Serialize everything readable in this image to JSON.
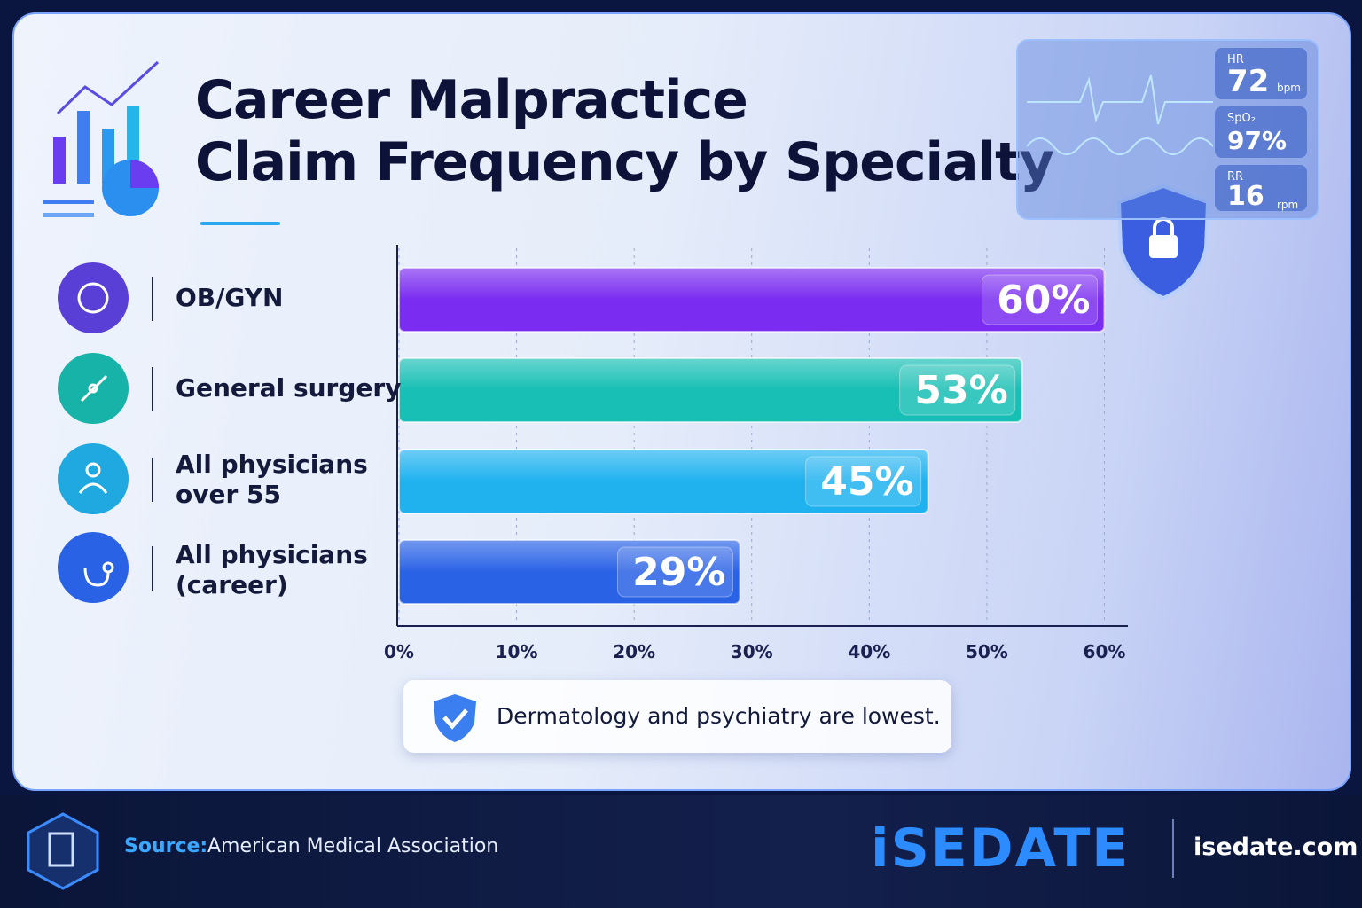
{
  "chart_data": {
    "type": "bar",
    "orientation": "horizontal",
    "title": "Career Malpractice\nClaim Frequency by Specialty",
    "categories": [
      "OB/GYN",
      "General surgery",
      "All physicians\nover 55",
      "All physicians\n(career)"
    ],
    "values": [
      60,
      53,
      45,
      29
    ],
    "value_labels": [
      "60%",
      "53%",
      "45%",
      "29%"
    ],
    "colors": [
      "#7a2cf0",
      "#17bfb4",
      "#1fb2ef",
      "#2a62e6"
    ],
    "xlim": [
      0,
      62
    ],
    "xticks": [
      {
        "value": 0,
        "label": "0%"
      },
      {
        "value": 10,
        "label": "10%"
      },
      {
        "value": 20,
        "label": "20%"
      },
      {
        "value": 30,
        "label": "30%"
      },
      {
        "value": 40,
        "label": "40%"
      },
      {
        "value": 50,
        "label": "50%"
      },
      {
        "value": 60,
        "label": "60%"
      }
    ],
    "grid": true,
    "annotation": "Dermatology and psychiatry are lowest."
  },
  "monitor": {
    "hr_label": "HR",
    "hr": "72",
    "hr_unit": "bpm",
    "spo2_label": "SpO₂",
    "spo2": "97%",
    "rr_label": "RR",
    "rr": "16",
    "rr_unit": "rpm"
  },
  "footer": {
    "source_label": "Source:",
    "source": "American Medical Association",
    "brand": "iSEDATE",
    "site": "isedate.com"
  }
}
